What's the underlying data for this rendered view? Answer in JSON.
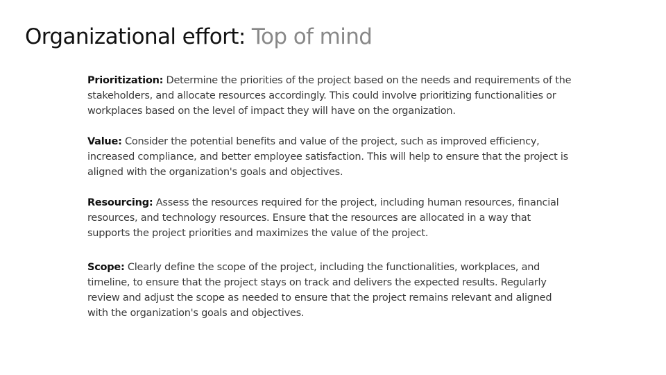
{
  "title": {
    "main": "Organizational effort: ",
    "accent": "Top of mind"
  },
  "sections": [
    {
      "term": "Prioritization:",
      "text": " Determine the priorities of the project based on the needs and requirements of the stakeholders, and allocate resources accordingly. This could involve prioritizing functionalities or workplaces based on the level of impact they will have on the organization."
    },
    {
      "term": "Value:",
      "text": " Consider the potential benefits and value of the project, such as improved efficiency, increased compliance, and better employee satisfaction. This will help to ensure that the project is aligned with the organization's goals and objectives."
    },
    {
      "term": "Resourcing:",
      "text": " Assess the resources required for the project, including human resources, financial resources, and technology resources. Ensure that the resources are allocated in a way that supports the project priorities and maximizes the value of the project."
    },
    {
      "term": "Scope:",
      "text": " Clearly define the scope of the project, including the functionalities, workplaces, and timeline, to ensure that the project stays on track and delivers the expected results. Regularly review and adjust the scope as needed to ensure that the project remains relevant and aligned with the organization's goals and objectives."
    }
  ]
}
